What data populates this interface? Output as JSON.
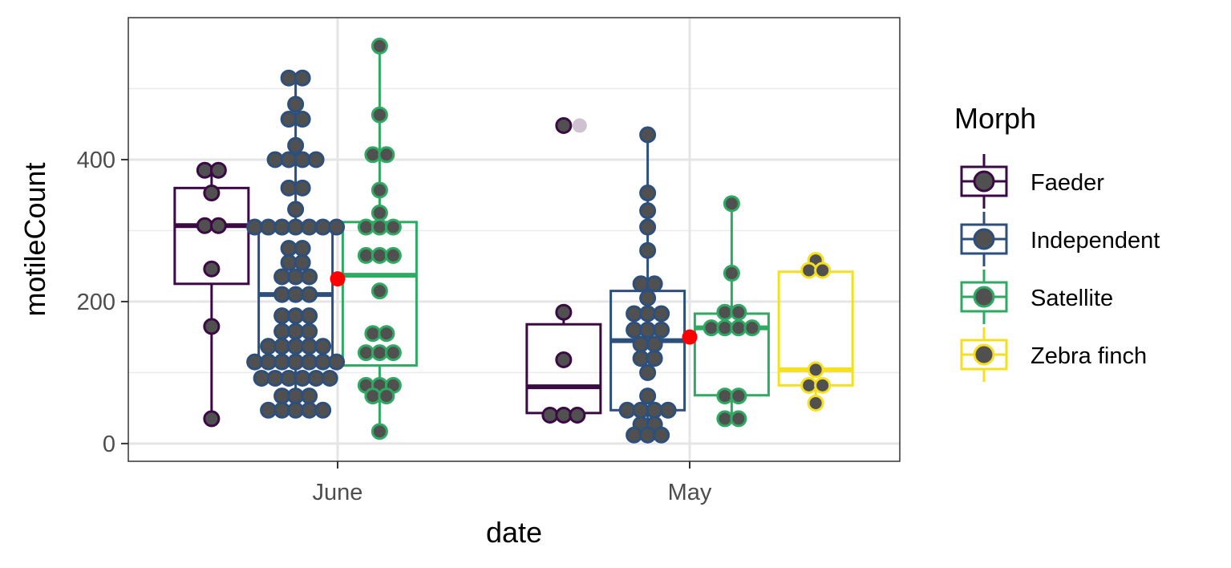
{
  "chart_data": {
    "type": "boxplot",
    "xlabel": "date",
    "ylabel": "motileCount",
    "categories": [
      "June",
      "May"
    ],
    "y_ticks": [
      0,
      200,
      400
    ],
    "ylim": [
      -25,
      600
    ],
    "grid": true,
    "legend": {
      "title": "Morph",
      "position": "right"
    },
    "series": [
      {
        "name": "Faeder",
        "color": "#3b0a45",
        "boxes": {
          "June": {
            "min": 35,
            "q1": 225,
            "median": 307,
            "q3": 360,
            "max": 385
          },
          "May": {
            "min": 40,
            "q1": 43,
            "median": 80,
            "q3": 168,
            "max": 185
          }
        },
        "points": {
          "June": [
            385,
            385,
            353,
            307,
            307,
            246,
            165,
            35
          ],
          "May": [
            448,
            185,
            118,
            40,
            40,
            40
          ]
        },
        "outliers": {
          "May": [
            448
          ]
        }
      },
      {
        "name": "Independent",
        "color": "#2c4f7c",
        "boxes": {
          "June": {
            "min": 47,
            "q1": 118,
            "median": 210,
            "q3": 305,
            "max": 515
          },
          "May": {
            "min": 12,
            "q1": 47,
            "median": 145,
            "q3": 215,
            "max": 435
          }
        },
        "points": {
          "June": [
            515,
            515,
            478,
            457,
            457,
            420,
            400,
            400,
            400,
            400,
            360,
            360,
            330,
            305,
            305,
            305,
            305,
            305,
            305,
            305,
            275,
            275,
            255,
            255,
            235,
            235,
            235,
            210,
            210,
            210,
            180,
            180,
            180,
            158,
            158,
            158,
            137,
            137,
            137,
            137,
            137,
            115,
            115,
            115,
            115,
            115,
            115,
            115,
            92,
            92,
            92,
            92,
            92,
            92,
            67,
            67,
            67,
            47,
            47,
            47,
            47,
            47
          ],
          "May": [
            435,
            353,
            328,
            305,
            272,
            225,
            225,
            205,
            183,
            183,
            183,
            160,
            160,
            160,
            140,
            140,
            120,
            120,
            100,
            67,
            47,
            47,
            47,
            47,
            27,
            27,
            12,
            12,
            12
          ]
        },
        "mean": {
          "June": 232,
          "May": 150
        }
      },
      {
        "name": "Satellite",
        "color": "#2eaa62",
        "boxes": {
          "June": {
            "min": 17,
            "q1": 110,
            "median": 237,
            "q3": 312,
            "max": 560
          },
          "May": {
            "min": 35,
            "q1": 68,
            "median": 163,
            "q3": 183,
            "max": 338
          }
        },
        "points": {
          "June": [
            560,
            463,
            407,
            407,
            357,
            325,
            305,
            305,
            305,
            265,
            265,
            265,
            215,
            155,
            155,
            128,
            128,
            128,
            82,
            82,
            82,
            67,
            67,
            17
          ],
          "May": [
            338,
            240,
            185,
            185,
            163,
            163,
            163,
            163,
            67,
            67,
            35,
            35
          ]
        }
      },
      {
        "name": "Zebra finch",
        "color": "#f6df1f",
        "boxes": {
          "May": {
            "min": 57,
            "q1": 82,
            "median": 104,
            "q3": 242,
            "max": 258
          }
        },
        "points": {
          "May": [
            258,
            244,
            244,
            104,
            82,
            82,
            57
          ]
        }
      }
    ],
    "mean_marker_color": "#ff0000",
    "point_fill_color": "#505050"
  }
}
